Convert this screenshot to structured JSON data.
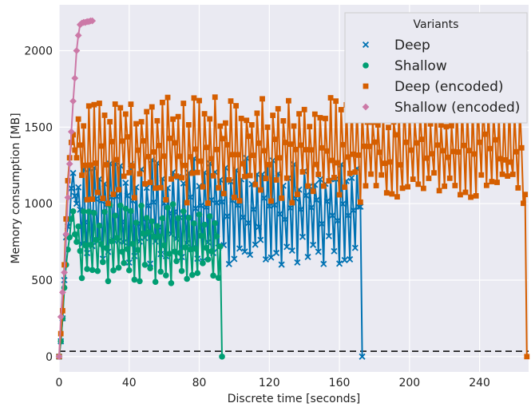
{
  "chart_data": {
    "type": "line",
    "xlabel": "Discrete time [seconds]",
    "ylabel": "Memory consumption [MB]",
    "xlim": [
      0,
      268
    ],
    "ylim": [
      -100,
      2300
    ],
    "x_ticks": [
      0,
      40,
      80,
      120,
      160,
      200,
      240
    ],
    "y_ticks": [
      0,
      500,
      1000,
      1500,
      2000
    ],
    "grid": true,
    "legend_title": "Variants",
    "legend_position": "top-right",
    "reference_line": {
      "y": 35,
      "style": "dashed",
      "color": "#000000"
    },
    "series": [
      {
        "name": "Deep",
        "color": "#0072b2",
        "marker": "x",
        "x": [
          0,
          1,
          2,
          3,
          4,
          5,
          6,
          7,
          8,
          9,
          10,
          12,
          20,
          40,
          60,
          80,
          100,
          120,
          140,
          160,
          170,
          172,
          173
        ],
        "y": [
          0,
          100,
          250,
          500,
          780,
          850,
          900,
          1100,
          1200,
          1050,
          1000,
          1000,
          1000,
          1000,
          1000,
          1000,
          1000,
          1000,
          1000,
          1000,
          990,
          980,
          0
        ],
        "y_low_envelope": 600,
        "y_high_envelope": 1300,
        "oscillation_period": 3
      },
      {
        "name": "Shallow",
        "color": "#009e73",
        "marker": "o",
        "x": [
          0,
          1,
          2,
          3,
          4,
          5,
          6,
          7,
          8,
          9,
          10,
          20,
          40,
          60,
          80,
          90,
          92,
          93
        ],
        "y": [
          0,
          100,
          250,
          450,
          600,
          700,
          780,
          900,
          950,
          800,
          750,
          750,
          750,
          750,
          750,
          750,
          720,
          0
        ],
        "y_low_envelope": 480,
        "y_high_envelope": 1000,
        "oscillation_period": 3
      },
      {
        "name": "Deep (encoded)",
        "color": "#d55e00",
        "marker": "s",
        "x": [
          0,
          1,
          2,
          3,
          4,
          5,
          6,
          7,
          8,
          9,
          10,
          20,
          40,
          60,
          80,
          100,
          120,
          140,
          160,
          180,
          200,
          220,
          240,
          260,
          265,
          266,
          267
        ],
        "y": [
          0,
          150,
          300,
          600,
          900,
          1150,
          1300,
          1400,
          1450,
          1350,
          1300,
          1300,
          1300,
          1300,
          1300,
          1300,
          1300,
          1300,
          1300,
          1300,
          1300,
          1300,
          1300,
          1300,
          1300,
          1060,
          0
        ],
        "y_low_envelope": 1000,
        "y_high_envelope": 1700,
        "oscillation_period": 3
      },
      {
        "name": "Shallow (encoded)",
        "color": "#cc79a7",
        "marker": "D",
        "x": [
          0,
          1,
          2,
          3,
          4,
          5,
          6,
          7,
          8,
          9,
          10,
          11,
          12,
          13,
          14,
          15,
          16,
          17,
          18,
          19
        ],
        "y": [
          0,
          260,
          420,
          550,
          800,
          1040,
          1260,
          1470,
          1670,
          1820,
          2000,
          2100,
          2170,
          2180,
          2185,
          2185,
          2190,
          2190,
          2195,
          2195
        ]
      }
    ]
  }
}
